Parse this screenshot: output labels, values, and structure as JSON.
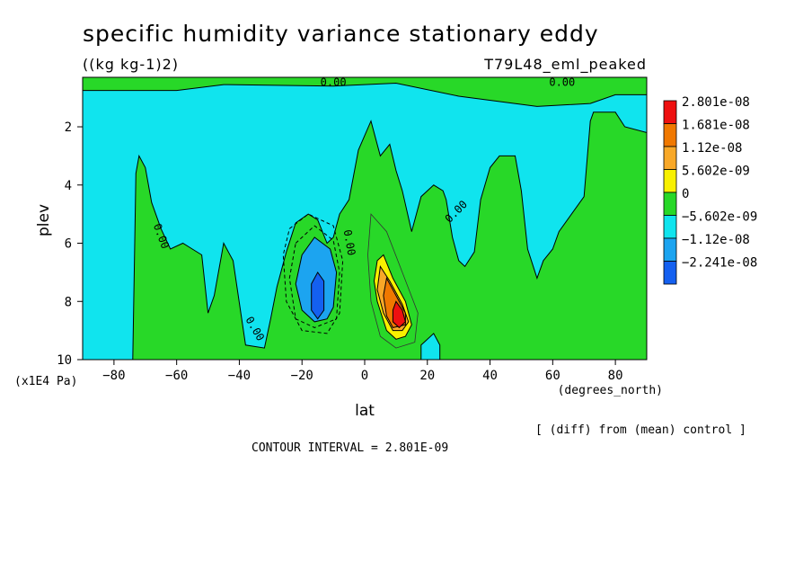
{
  "chart_data": {
    "type": "contour",
    "title": "specific humidity variance stationary eddy",
    "units": "((kg kg-1)2)",
    "run_label": "T79L48_eml_peaked",
    "xlabel": "lat",
    "xunits": "(degrees_north)",
    "ylabel": "plev",
    "yunits": "(x1E4 Pa)",
    "xlim": [
      -90,
      90
    ],
    "ylim": [
      10,
      0.3
    ],
    "x_ticks": [
      -80,
      -60,
      -40,
      -20,
      0,
      20,
      40,
      60,
      80
    ],
    "y_ticks": [
      2,
      4,
      6,
      8,
      10
    ],
    "contour_interval_text": "CONTOUR INTERVAL = 2.801E-09",
    "note": "[ (diff) from (mean) control ]",
    "contour_line_labels": [
      "0.00",
      "0.00",
      "0.00",
      "0.00",
      "0.00",
      "0.00"
    ],
    "legend": [
      {
        "label": "2.801e-08",
        "color": "#ee1010"
      },
      {
        "label": "1.681e-08",
        "color": "#f07800"
      },
      {
        "label": "1.12e-08",
        "color": "#f8a828"
      },
      {
        "label": "5.602e-09",
        "color": "#f8f000"
      },
      {
        "label": "0",
        "color": "#28d828"
      },
      {
        "label": "-5.602e-09",
        "color": "#10e4ee"
      },
      {
        "label": "-1.12e-08",
        "color": "#1ca4f0"
      },
      {
        "label": "-2.241e-08",
        "color": "#1460f0"
      }
    ],
    "regions": [
      {
        "level": "0",
        "color": "#28d828",
        "poly": [
          [
            -90,
            0.3
          ],
          [
            90,
            0.3
          ],
          [
            90,
            10
          ],
          [
            -90,
            10
          ]
        ]
      },
      {
        "level": "-5.602e-09",
        "color": "#10e4ee",
        "poly": [
          [
            -90,
            0.75
          ],
          [
            -60,
            0.75
          ],
          [
            -45,
            0.55
          ],
          [
            -10,
            0.6
          ],
          [
            10,
            0.5
          ],
          [
            30,
            0.95
          ],
          [
            55,
            1.3
          ],
          [
            72,
            1.2
          ],
          [
            80,
            0.9
          ],
          [
            90,
            0.9
          ],
          [
            90,
            2.2
          ],
          [
            83,
            2.0
          ],
          [
            80,
            1.5
          ],
          [
            73,
            1.5
          ],
          [
            72,
            1.8
          ],
          [
            70,
            4.4
          ],
          [
            62,
            5.6
          ],
          [
            60,
            6.2
          ],
          [
            57,
            6.6
          ],
          [
            55,
            7.2
          ],
          [
            52,
            6.2
          ],
          [
            50,
            4.2
          ],
          [
            48,
            3.0
          ],
          [
            43,
            3.0
          ],
          [
            40,
            3.4
          ],
          [
            37,
            4.5
          ],
          [
            35,
            6.3
          ],
          [
            32,
            6.8
          ],
          [
            30,
            6.6
          ],
          [
            28,
            5.8
          ],
          [
            26,
            4.5
          ],
          [
            25,
            4.2
          ],
          [
            22,
            4.0
          ],
          [
            18,
            4.4
          ],
          [
            15,
            5.6
          ],
          [
            12,
            4.2
          ],
          [
            10,
            3.5
          ],
          [
            8,
            2.6
          ],
          [
            5,
            3.0
          ],
          [
            2,
            1.8
          ],
          [
            -2,
            2.8
          ],
          [
            -5,
            4.5
          ],
          [
            -8,
            5.0
          ],
          [
            -10,
            5.8
          ],
          [
            -12,
            6.0
          ],
          [
            -15,
            5.2
          ],
          [
            -18,
            5.0
          ],
          [
            -22,
            5.3
          ],
          [
            -25,
            6.3
          ],
          [
            -28,
            7.5
          ],
          [
            -30,
            8.6
          ],
          [
            -32,
            9.6
          ],
          [
            -38,
            9.5
          ],
          [
            -42,
            6.6
          ],
          [
            -45,
            6.0
          ],
          [
            -48,
            7.8
          ],
          [
            -50,
            8.4
          ],
          [
            -52,
            6.4
          ],
          [
            -55,
            6.2
          ],
          [
            -58,
            6.0
          ],
          [
            -62,
            6.2
          ],
          [
            -65,
            5.5
          ],
          [
            -68,
            4.6
          ],
          [
            -70,
            3.4
          ],
          [
            -72,
            3.0
          ],
          [
            -73,
            3.6
          ],
          [
            -74,
            10
          ],
          [
            -90,
            10
          ]
        ]
      },
      {
        "level": "-5.602e-09",
        "color": "#10e4ee",
        "poly": [
          [
            18,
            9.5
          ],
          [
            22,
            9.1
          ],
          [
            24,
            9.5
          ],
          [
            24,
            10
          ],
          [
            18,
            10
          ]
        ]
      },
      {
        "level": "-1.12e-08",
        "color": "#1ca4f0",
        "poly": [
          [
            -20,
            6.4
          ],
          [
            -16,
            5.8
          ],
          [
            -11,
            6.2
          ],
          [
            -9,
            7.0
          ],
          [
            -10,
            8.2
          ],
          [
            -12,
            8.6
          ],
          [
            -16,
            8.7
          ],
          [
            -20,
            8.3
          ],
          [
            -22,
            7.4
          ]
        ]
      },
      {
        "level": "-2.241e-08",
        "color": "#1460f0",
        "poly": [
          [
            -17,
            7.4
          ],
          [
            -15,
            7.0
          ],
          [
            -13,
            7.3
          ],
          [
            -13,
            8.3
          ],
          [
            -15,
            8.6
          ],
          [
            -17,
            8.3
          ]
        ]
      },
      {
        "level": "5.602e-09",
        "color": "#f8f000",
        "poly": [
          [
            4,
            6.6
          ],
          [
            6,
            6.4
          ],
          [
            9,
            7.2
          ],
          [
            13,
            8.0
          ],
          [
            15,
            8.8
          ],
          [
            13,
            9.2
          ],
          [
            10,
            9.3
          ],
          [
            7,
            9.0
          ],
          [
            4,
            8.0
          ],
          [
            3,
            7.3
          ]
        ]
      },
      {
        "level": "1.12e-08",
        "color": "#f8a828",
        "poly": [
          [
            5,
            6.8
          ],
          [
            8,
            7.3
          ],
          [
            12,
            8.1
          ],
          [
            14,
            8.7
          ],
          [
            12,
            9.0
          ],
          [
            9,
            9.0
          ],
          [
            6,
            8.4
          ],
          [
            4,
            7.6
          ]
        ]
      },
      {
        "level": "1.681e-08",
        "color": "#f07800",
        "poly": [
          [
            7,
            7.2
          ],
          [
            10,
            7.8
          ],
          [
            13,
            8.4
          ],
          [
            13,
            8.8
          ],
          [
            9,
            8.9
          ],
          [
            7,
            8.5
          ],
          [
            6,
            7.8
          ]
        ]
      },
      {
        "level": "2.801e-08",
        "color": "#ee1010",
        "poly": [
          [
            10,
            8.0
          ],
          [
            12,
            8.3
          ],
          [
            13,
            8.7
          ],
          [
            11,
            8.9
          ],
          [
            9,
            8.7
          ],
          [
            9,
            8.3
          ]
        ]
      }
    ]
  }
}
